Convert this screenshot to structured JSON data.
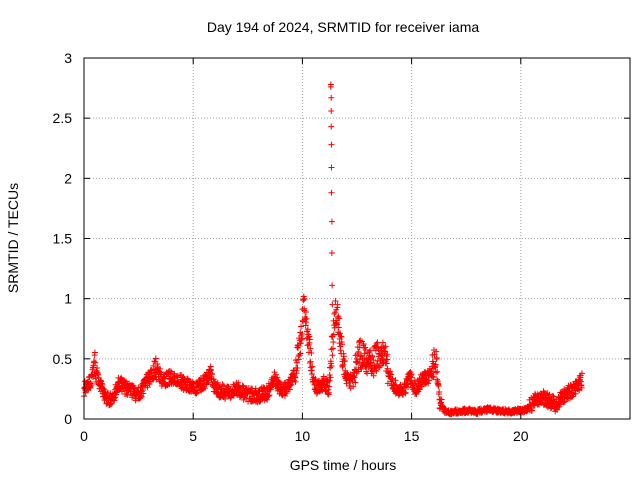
{
  "chart_data": {
    "type": "scatter",
    "title": "Day 194 of 2024, SRMTID for receiver iama",
    "xlabel": "GPS time / hours",
    "ylabel": "SRMTID / TECUs",
    "xlim": [
      0,
      25
    ],
    "ylim": [
      0,
      3
    ],
    "xticks": [
      0,
      5,
      10,
      15,
      20
    ],
    "xtick_labels": [
      "0",
      "5",
      "10",
      "15",
      "20"
    ],
    "yticks": [
      0,
      0.5,
      1,
      1.5,
      2,
      2.5,
      3
    ],
    "ytick_labels": [
      "0",
      "0.5",
      "1",
      "1.5",
      "2",
      "2.5",
      "3"
    ],
    "grid": true,
    "marker": "+",
    "series": [
      {
        "name": "SRMTID",
        "color": "#ff0000",
        "profile_x": [
          0,
          0.3,
          0.5,
          0.7,
          1.0,
          1.3,
          1.6,
          2.0,
          2.5,
          3.0,
          3.3,
          3.6,
          4.0,
          4.5,
          5.0,
          5.5,
          5.8,
          6.0,
          6.5,
          7.0,
          7.5,
          8.0,
          8.4,
          8.7,
          9.0,
          9.3,
          9.6,
          9.9,
          10.05,
          10.2,
          10.35,
          10.5,
          10.7,
          11.0,
          11.2,
          11.5,
          11.6,
          11.8,
          12.0,
          12.3,
          12.6,
          12.9,
          13.2,
          13.5,
          13.8,
          14.0,
          14.3,
          14.6,
          14.9,
          15.2,
          15.5,
          15.8,
          16.1,
          16.3,
          16.6,
          17.0,
          17.5,
          18.0,
          18.5,
          19.0,
          19.5,
          20.0,
          20.3,
          20.6,
          21.0,
          21.3,
          21.6,
          22.0,
          22.4,
          22.8
        ],
        "profile_y": [
          0.25,
          0.3,
          0.45,
          0.3,
          0.18,
          0.15,
          0.3,
          0.25,
          0.2,
          0.35,
          0.42,
          0.32,
          0.35,
          0.3,
          0.25,
          0.3,
          0.4,
          0.25,
          0.22,
          0.25,
          0.2,
          0.2,
          0.22,
          0.35,
          0.25,
          0.25,
          0.35,
          0.6,
          0.95,
          0.75,
          0.55,
          0.3,
          0.25,
          0.3,
          0.25,
          0.9,
          0.85,
          0.55,
          0.35,
          0.3,
          0.55,
          0.5,
          0.45,
          0.55,
          0.5,
          0.35,
          0.25,
          0.22,
          0.35,
          0.25,
          0.35,
          0.35,
          0.5,
          0.12,
          0.05,
          0.06,
          0.07,
          0.06,
          0.08,
          0.07,
          0.06,
          0.07,
          0.08,
          0.15,
          0.18,
          0.15,
          0.12,
          0.2,
          0.25,
          0.32
        ],
        "spike_x": [
          11.3,
          11.3,
          11.32,
          11.32,
          11.32,
          11.33,
          11.33,
          11.33,
          11.35,
          11.35,
          11.36,
          11.37
        ],
        "spike_y": [
          2.78,
          2.76,
          2.67,
          2.56,
          2.43,
          2.28,
          2.09,
          1.88,
          1.64,
          1.38,
          1.11,
          0.95
        ]
      }
    ]
  }
}
